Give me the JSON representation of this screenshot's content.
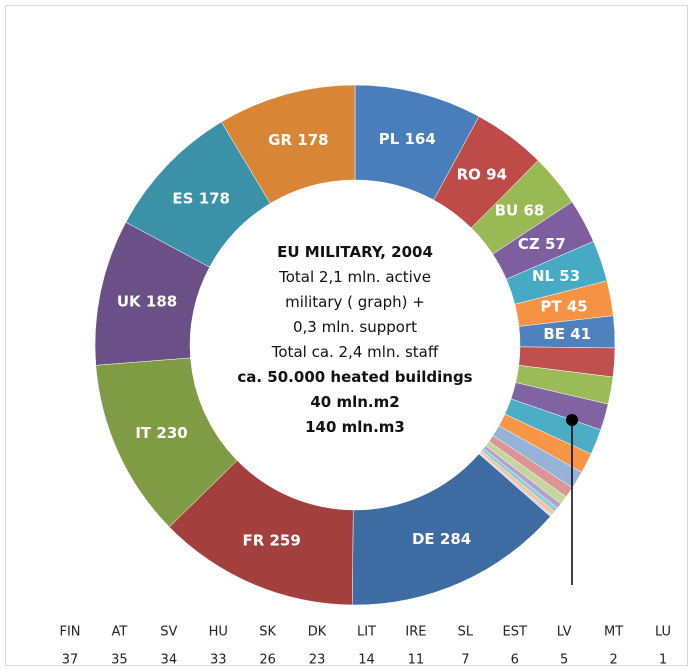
{
  "chart_data": {
    "type": "donut",
    "categories": [
      "PL",
      "RO",
      "BU",
      "CZ",
      "NL",
      "PT",
      "BE",
      "FIN",
      "AT",
      "SV",
      "HU",
      "SK",
      "DK",
      "LIT",
      "IRE",
      "SL",
      "EST",
      "LV",
      "MT",
      "LU",
      "DE",
      "FR",
      "IT",
      "UK",
      "ES",
      "GR"
    ],
    "values": [
      164,
      94,
      68,
      57,
      53,
      45,
      41,
      37,
      35,
      34,
      33,
      26,
      23,
      14,
      11,
      7,
      6,
      5,
      2,
      1,
      284,
      259,
      230,
      188,
      178,
      178
    ],
    "colors": [
      "#4a7ebb",
      "#be4b48",
      "#98b954",
      "#7d5fa0",
      "#46aac5",
      "#f59243",
      "#4f81bd",
      "#c0504d",
      "#9bbb59",
      "#8064a2",
      "#4bacc6",
      "#f79646",
      "#95b3d7",
      "#d99694",
      "#c3d69b",
      "#b3a2c7",
      "#93cddd",
      "#fac090",
      "#b9cde5",
      "#e6b9b8",
      "#3e6ba1",
      "#a33f3c",
      "#7f9c45",
      "#6a5087",
      "#3a91a8",
      "#d98536"
    ],
    "center_text": [
      {
        "text": "EU MILITARY,  2004",
        "bold": true
      },
      {
        "text": "Total 2,1  mln. active",
        "bold": false
      },
      {
        "text": "military ( graph) +",
        "bold": false
      },
      {
        "text": "0,3 mln.  support",
        "bold": false
      },
      {
        "text": "Total  ca. 2,4  mln. staff",
        "bold": false
      },
      {
        "text": "ca. 50.000  heated buildings",
        "bold": true
      },
      {
        "text": "40  mln.m2",
        "bold": true
      },
      {
        "text": "140  mln.m3",
        "bold": true
      }
    ]
  }
}
